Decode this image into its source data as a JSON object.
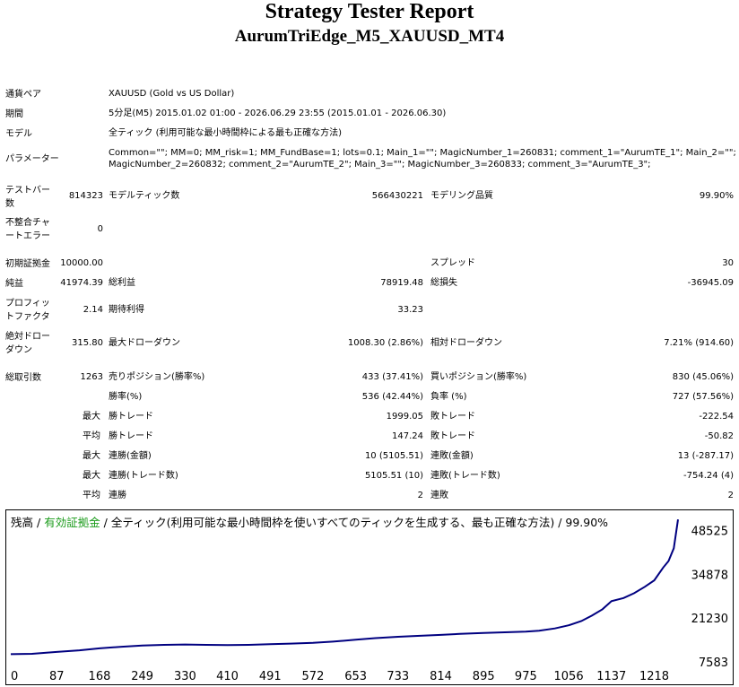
{
  "header": {
    "title": "Strategy Tester Report",
    "subtitle": "AurumTriEdge_M5_XAUUSD_MT4"
  },
  "info": {
    "pair_label": "通貨ペア",
    "pair_value": "XAUUSD (Gold vs US Dollar)",
    "period_label": "期間",
    "period_value": "5分足(M5) 2015.01.02 01:00 - 2026.06.29 23:55 (2015.01.01 - 2026.06.30)",
    "model_label": "モデル",
    "model_value": "全ティック (利用可能な最小時間枠による最も正確な方法)",
    "params_label": "パラメーター",
    "params_line1": "Common=\"\"; MM=0; MM_risk=1; MM_FundBase=1; lots=0.1; Main_1=\"\"; MagicNumber_1=260831; comment_1=\"AurumTE_1\"; Main_2=\"\";",
    "params_line2": "MagicNumber_2=260832; comment_2=\"AurumTE_2\"; Main_3=\"\"; MagicNumber_3=260833; comment_3=\"AurumTE_3\";"
  },
  "stats": {
    "bars_label_1": "テストバー",
    "bars_label_2": "数",
    "bars_value": "814323",
    "ticks_label": "モデルティック数",
    "ticks_value": "566430221",
    "quality_label": "モデリング品質",
    "quality_value": "99.90%",
    "mismatch_label_1": "不整合チャ",
    "mismatch_label_2": "ートエラー",
    "mismatch_value": "0",
    "deposit_label": "初期証拠金",
    "deposit_value": "10000.00",
    "spread_label": "スプレッド",
    "spread_value": "30",
    "net_label": "純益",
    "net_value": "41974.39",
    "gross_profit_label": "総利益",
    "gross_profit_value": "78919.48",
    "gross_loss_label": "総損失",
    "gross_loss_value": "-36945.09",
    "pf_label_1": "プロフィッ",
    "pf_label_2": "トファクタ",
    "pf_value": "2.14",
    "expected_label": "期待利得",
    "expected_value": "33.23",
    "abs_dd_label_1": "絶対ドロー",
    "abs_dd_label_2": "ダウン",
    "abs_dd_value": "315.80",
    "max_dd_label": "最大ドローダウン",
    "max_dd_value": "1008.30 (2.86%)",
    "rel_dd_label": "相対ドローダウン",
    "rel_dd_value": "7.21% (914.60)",
    "trades_label": "総取引数",
    "trades_value": "1263",
    "short_label": "売りポジション(勝率%)",
    "short_value": "433 (37.41%)",
    "long_label": "買いポジション(勝率%)",
    "long_value": "830 (45.06%)",
    "win_rate_label": "勝率(%)",
    "win_rate_value": "536 (42.44%)",
    "loss_rate_label": "負率 (%)",
    "loss_rate_value": "727 (57.56%)",
    "max_label": "最大",
    "avg_label": "平均",
    "largest_win_label": "勝トレード",
    "largest_win_value": "1999.05",
    "largest_loss_label": "敗トレード",
    "largest_loss_value": "-222.54",
    "avg_win_label": "勝トレード",
    "avg_win_value": "147.24",
    "avg_loss_label": "敗トレード",
    "avg_loss_value": "-50.82",
    "max_consec_win_label": "連勝(金額)",
    "max_consec_win_value": "10 (5105.51)",
    "max_consec_loss_label": "連敗(金額)",
    "max_consec_loss_value": "13 (-287.17)",
    "max_consec_profit_label": "連勝(トレード数)",
    "max_consec_profit_value": "5105.51 (10)",
    "max_consec_lossamt_label": "連敗(トレード数)",
    "max_consec_lossamt_value": "-754.24 (4)",
    "avg_consec_win_label": "連勝",
    "avg_consec_win_value": "2",
    "avg_consec_loss_label": "連敗",
    "avg_consec_loss_value": "2"
  },
  "chart_data": {
    "type": "line",
    "legend_balance": "残高",
    "legend_sep1": " / ",
    "legend_equity": "有効証拠金",
    "legend_rest": " / 全ティック(利用可能な最小時間枠を使いすべてのティックを生成する、最も正確な方法) / 99.90%",
    "x_ticks": [
      0,
      87,
      168,
      249,
      330,
      410,
      491,
      572,
      653,
      733,
      814,
      895,
      975,
      1056,
      1137,
      1218
    ],
    "y_ticks": [
      7583,
      21230,
      34878,
      48525
    ],
    "xlim": [
      0,
      1263
    ],
    "ylim": [
      7583,
      54000
    ],
    "series": [
      {
        "x": [
          0,
          40,
          87,
          130,
          168,
          210,
          249,
          290,
          330,
          370,
          410,
          450,
          491,
          530,
          572,
          610,
          653,
          690,
          733,
          770,
          814,
          850,
          895,
          935,
          975,
          1000,
          1030,
          1056,
          1080,
          1100,
          1120,
          1137,
          1160,
          1180,
          1200,
          1218,
          1235,
          1245,
          1255,
          1263
        ],
        "y": [
          10000,
          10100,
          10700,
          11200,
          11800,
          12300,
          12700,
          12900,
          13000,
          12900,
          12800,
          12900,
          13100,
          13300,
          13500,
          13900,
          14500,
          15000,
          15400,
          15700,
          16000,
          16300,
          16600,
          16800,
          17000,
          17300,
          18000,
          19000,
          20300,
          22000,
          24000,
          26500,
          27500,
          29000,
          31000,
          33000,
          37000,
          39000,
          43000,
          52000
        ]
      }
    ],
    "line_color": "#000080"
  }
}
